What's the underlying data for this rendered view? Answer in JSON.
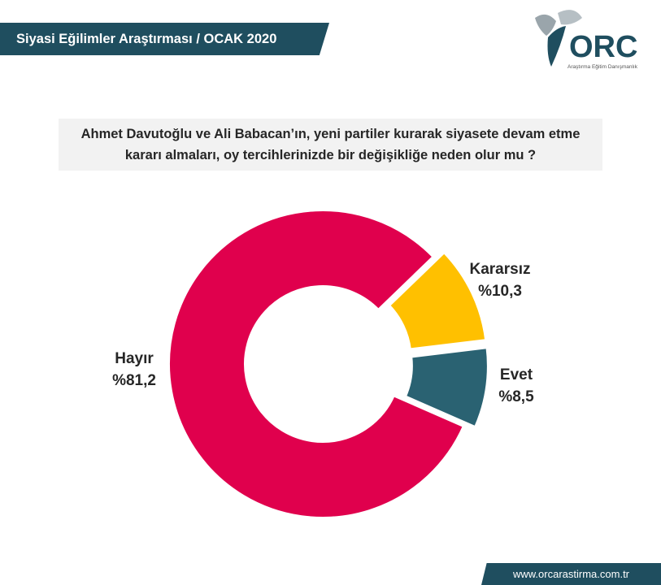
{
  "header": {
    "title": "Siyasi Eğilimler Araştırması  / OCAK 2020"
  },
  "logo": {
    "name": "ORC",
    "tagline": "Araştırma Eğitim Danışmanlık"
  },
  "question": "Ahmet Davutoğlu ve Ali Babacan’ın, yeni partiler kurarak siyasete devam etme kararı almaları, oy tercihlerinizde bir değişikliğe neden olur mu ?",
  "chart_data": {
    "type": "pie",
    "donut": true,
    "slices": [
      {
        "label": "Kararsız",
        "value": 10.3,
        "value_label": "%10,3",
        "color": "#ffc000"
      },
      {
        "label": "Evet",
        "value": 8.5,
        "value_label": "%8,5",
        "color": "#2a6272"
      },
      {
        "label": "Hayır",
        "value": 81.2,
        "value_label": "%81,2",
        "color": "#e0004d"
      }
    ]
  },
  "footer": {
    "website": "www.orcarastirma.com.tr"
  }
}
